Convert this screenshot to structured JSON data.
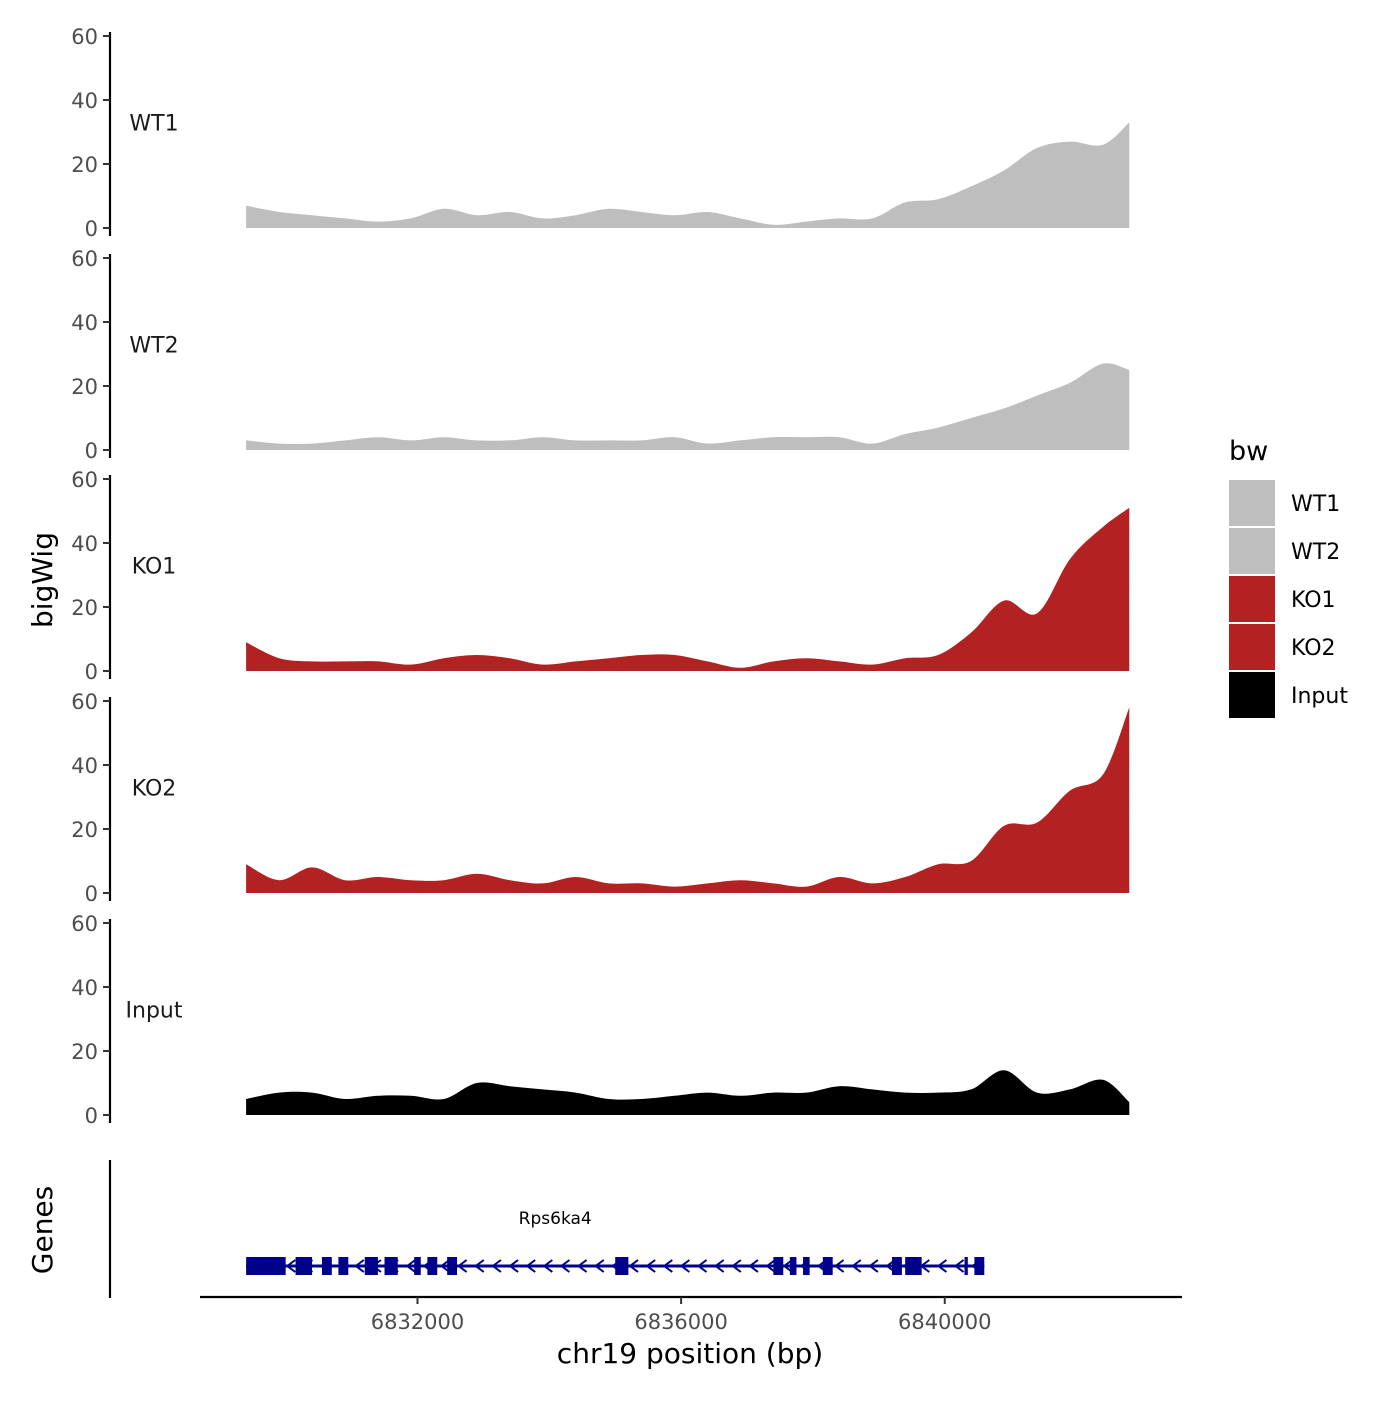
{
  "chart_data": {
    "type": "area",
    "title": "",
    "ylabel": "bigWig",
    "xlabel": "chr19 position (bp)",
    "xlim": [
      6828700,
      6843600
    ],
    "ylim": [
      0,
      60
    ],
    "y_ticks": [
      0,
      20,
      40,
      60
    ],
    "x_ticks": [
      6832000,
      6836000,
      6840000
    ],
    "x_tick_labels": [
      "6832000",
      "6836000",
      "6840000"
    ],
    "grid": false,
    "legend": {
      "title": "bw",
      "position": "right",
      "entries": [
        {
          "label": "WT1",
          "color": "#bebebe"
        },
        {
          "label": "WT2",
          "color": "#bebebe"
        },
        {
          "label": "KO1",
          "color": "#b22222"
        },
        {
          "label": "KO2",
          "color": "#b22222"
        },
        {
          "label": "Input",
          "color": "#000000"
        }
      ]
    },
    "x": [
      6829400,
      6829900,
      6830400,
      6830900,
      6831400,
      6831900,
      6832400,
      6832900,
      6833400,
      6833900,
      6834400,
      6834900,
      6835400,
      6835900,
      6836400,
      6836900,
      6837400,
      6837900,
      6838400,
      6838900,
      6839400,
      6839900,
      6840400,
      6840900,
      6841400,
      6841900,
      6842400,
      6842800
    ],
    "series": [
      {
        "name": "WT1",
        "color": "#bebebe",
        "values": [
          7,
          5,
          4,
          3,
          2,
          3,
          6,
          4,
          5,
          3,
          4,
          6,
          5,
          4,
          5,
          3,
          1,
          2,
          3,
          3,
          8,
          9,
          13,
          18,
          25,
          27,
          26,
          33
        ]
      },
      {
        "name": "WT2",
        "color": "#bebebe",
        "values": [
          3,
          2,
          2,
          3,
          4,
          3,
          4,
          3,
          3,
          4,
          3,
          3,
          3,
          4,
          2,
          3,
          4,
          4,
          4,
          2,
          5,
          7,
          10,
          13,
          17,
          21,
          27,
          25
        ]
      },
      {
        "name": "KO1",
        "color": "#b22222",
        "values": [
          9,
          4,
          3,
          3,
          3,
          2,
          4,
          5,
          4,
          2,
          3,
          4,
          5,
          5,
          3,
          1,
          3,
          4,
          3,
          2,
          4,
          5,
          12,
          22,
          18,
          35,
          45,
          51
        ]
      },
      {
        "name": "KO2",
        "color": "#b22222",
        "values": [
          9,
          4,
          8,
          4,
          5,
          4,
          4,
          6,
          4,
          3,
          5,
          3,
          3,
          2,
          3,
          4,
          3,
          2,
          5,
          3,
          5,
          9,
          10,
          21,
          22,
          32,
          37,
          58
        ]
      },
      {
        "name": "Input",
        "color": "#000000",
        "values": [
          5,
          7,
          7,
          5,
          6,
          6,
          5,
          10,
          9,
          8,
          7,
          5,
          5,
          6,
          7,
          6,
          7,
          7,
          9,
          8,
          7,
          7,
          8,
          14,
          7,
          8,
          11,
          4
        ]
      }
    ],
    "genes": {
      "track_label": "Genes",
      "gene_name": "Rps6ka4",
      "color": "#00008b",
      "strand": "-",
      "start": 6829400,
      "end": 6840600,
      "exons": [
        [
          6829400,
          6830000
        ],
        [
          6830150,
          6830400
        ],
        [
          6830550,
          6830700
        ],
        [
          6830800,
          6830950
        ],
        [
          6831200,
          6831400
        ],
        [
          6831500,
          6831700
        ],
        [
          6831950,
          6832050
        ],
        [
          6832150,
          6832300
        ],
        [
          6832450,
          6832600
        ],
        [
          6835000,
          6835200
        ],
        [
          6837400,
          6837550
        ],
        [
          6837650,
          6837750
        ],
        [
          6837850,
          6837950
        ],
        [
          6838150,
          6838300
        ],
        [
          6839200,
          6839350
        ],
        [
          6839400,
          6839650
        ],
        [
          6840300,
          6840350
        ],
        [
          6840450,
          6840600
        ]
      ]
    }
  }
}
